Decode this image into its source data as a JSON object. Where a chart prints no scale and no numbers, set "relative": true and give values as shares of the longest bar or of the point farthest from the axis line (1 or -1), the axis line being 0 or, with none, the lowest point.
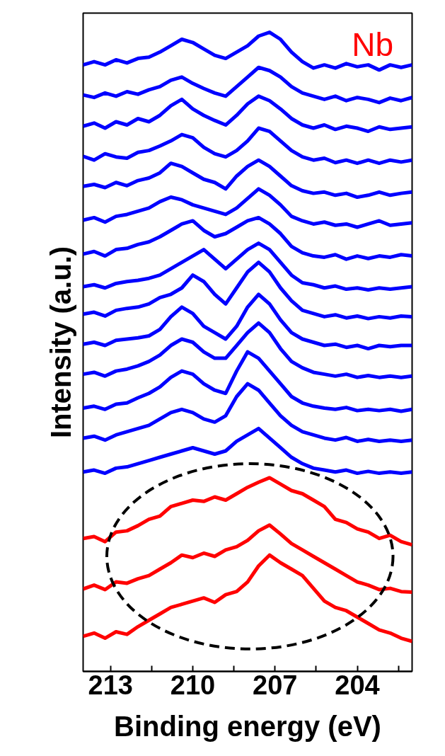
{
  "chart_data": {
    "type": "line",
    "relative": true,
    "xlabel": "Binding energy (eV)",
    "ylabel": "Intensity (a.u.)",
    "annotations": [
      "Nb"
    ],
    "xlim": [
      214.0,
      202.0
    ],
    "xticks": [
      213,
      {
        "value": 211.5,
        "label": null
      },
      210,
      {
        "value": 208.5,
        "label": null
      },
      207,
      {
        "value": 205.5,
        "label": null
      },
      204,
      {
        "value": 202.5,
        "label": null
      }
    ],
    "tick_labels": "x",
    "grid": false,
    "marker": "none",
    "line_style": "solid",
    "x": [
      214,
      213.6,
      213.2,
      212.8,
      212.4,
      212.0,
      211.6,
      211.2,
      210.8,
      210.4,
      210.0,
      209.6,
      209.2,
      208.8,
      208.4,
      208.0,
      207.6,
      207.2,
      206.8,
      206.4,
      206.0,
      205.6,
      205.2,
      204.8,
      204.4,
      204.0,
      203.6,
      203.2,
      202.8,
      202.4,
      202.0
    ],
    "series": [
      {
        "color": "#0000ff",
        "values": [
          0.949,
          0.954,
          0.949,
          0.957,
          0.952,
          0.959,
          0.961,
          0.969,
          0.979,
          0.989,
          0.984,
          0.974,
          0.964,
          0.959,
          0.969,
          0.979,
          0.994,
          1.0,
          0.989,
          0.969,
          0.954,
          0.944,
          0.949,
          0.944,
          0.951,
          0.946,
          0.949,
          0.941,
          0.949,
          0.945,
          0.949
        ]
      },
      {
        "color": "#0000ff",
        "values": [
          0.902,
          0.898,
          0.905,
          0.9,
          0.907,
          0.903,
          0.91,
          0.915,
          0.925,
          0.93,
          0.92,
          0.912,
          0.905,
          0.9,
          0.915,
          0.93,
          0.945,
          0.94,
          0.93,
          0.915,
          0.905,
          0.9,
          0.895,
          0.9,
          0.893,
          0.898,
          0.895,
          0.89,
          0.897,
          0.893,
          0.898
        ]
      },
      {
        "color": "#0000ff",
        "values": [
          0.853,
          0.858,
          0.85,
          0.86,
          0.855,
          0.865,
          0.86,
          0.87,
          0.885,
          0.895,
          0.88,
          0.87,
          0.862,
          0.855,
          0.87,
          0.888,
          0.9,
          0.893,
          0.88,
          0.865,
          0.855,
          0.85,
          0.855,
          0.848,
          0.853,
          0.85,
          0.845,
          0.852,
          0.848,
          0.85,
          0.852
        ]
      },
      {
        "color": "#0000ff",
        "values": [
          0.806,
          0.8,
          0.81,
          0.805,
          0.803,
          0.812,
          0.815,
          0.822,
          0.83,
          0.84,
          0.835,
          0.82,
          0.81,
          0.805,
          0.815,
          0.83,
          0.85,
          0.845,
          0.83,
          0.815,
          0.805,
          0.8,
          0.803,
          0.796,
          0.8,
          0.795,
          0.8,
          0.795,
          0.8,
          0.797,
          0.8
        ]
      },
      {
        "color": "#0000ff",
        "values": [
          0.759,
          0.762,
          0.757,
          0.765,
          0.76,
          0.768,
          0.772,
          0.78,
          0.795,
          0.79,
          0.78,
          0.77,
          0.765,
          0.755,
          0.775,
          0.79,
          0.8,
          0.79,
          0.775,
          0.76,
          0.752,
          0.748,
          0.75,
          0.745,
          0.748,
          0.742,
          0.745,
          0.75,
          0.745,
          0.748,
          0.75
        ]
      },
      {
        "color": "#0000ff",
        "values": [
          0.706,
          0.71,
          0.703,
          0.712,
          0.715,
          0.72,
          0.725,
          0.735,
          0.742,
          0.738,
          0.73,
          0.725,
          0.72,
          0.715,
          0.725,
          0.74,
          0.755,
          0.745,
          0.73,
          0.712,
          0.705,
          0.7,
          0.703,
          0.698,
          0.7,
          0.695,
          0.7,
          0.705,
          0.698,
          0.7,
          0.702
        ]
      },
      {
        "color": "#0000ff",
        "values": [
          0.653,
          0.657,
          0.65,
          0.66,
          0.662,
          0.668,
          0.672,
          0.68,
          0.69,
          0.7,
          0.705,
          0.69,
          0.68,
          0.685,
          0.695,
          0.705,
          0.71,
          0.7,
          0.685,
          0.665,
          0.655,
          0.65,
          0.648,
          0.652,
          0.645,
          0.65,
          0.646,
          0.65,
          0.648,
          0.652,
          0.65
        ]
      },
      {
        "color": "#0000ff",
        "values": [
          0.602,
          0.605,
          0.6,
          0.607,
          0.61,
          0.612,
          0.615,
          0.62,
          0.63,
          0.64,
          0.65,
          0.66,
          0.645,
          0.63,
          0.645,
          0.66,
          0.67,
          0.66,
          0.64,
          0.62,
          0.608,
          0.605,
          0.6,
          0.603,
          0.598,
          0.6,
          0.597,
          0.6,
          0.598,
          0.6,
          0.602
        ]
      },
      {
        "color": "#0000ff",
        "values": [
          0.559,
          0.562,
          0.556,
          0.565,
          0.568,
          0.57,
          0.575,
          0.585,
          0.59,
          0.6,
          0.62,
          0.61,
          0.59,
          0.575,
          0.6,
          0.625,
          0.64,
          0.625,
          0.6,
          0.58,
          0.565,
          0.56,
          0.555,
          0.558,
          0.553,
          0.556,
          0.552,
          0.555,
          0.553,
          0.556,
          0.555
        ]
      },
      {
        "color": "#0000ff",
        "values": [
          0.512,
          0.515,
          0.51,
          0.518,
          0.52,
          0.522,
          0.525,
          0.535,
          0.555,
          0.57,
          0.56,
          0.54,
          0.53,
          0.52,
          0.54,
          0.57,
          0.59,
          0.575,
          0.55,
          0.53,
          0.52,
          0.515,
          0.51,
          0.512,
          0.507,
          0.51,
          0.505,
          0.51,
          0.508,
          0.51,
          0.51
        ]
      },
      {
        "color": "#0000ff",
        "values": [
          0.465,
          0.468,
          0.462,
          0.47,
          0.473,
          0.478,
          0.485,
          0.495,
          0.51,
          0.52,
          0.515,
          0.5,
          0.49,
          0.49,
          0.51,
          0.53,
          0.545,
          0.53,
          0.505,
          0.485,
          0.475,
          0.468,
          0.465,
          0.462,
          0.465,
          0.46,
          0.463,
          0.46,
          0.462,
          0.46,
          0.462
        ]
      },
      {
        "color": "#0000ff",
        "values": [
          0.412,
          0.415,
          0.41,
          0.418,
          0.42,
          0.428,
          0.435,
          0.445,
          0.46,
          0.47,
          0.465,
          0.45,
          0.44,
          0.435,
          0.47,
          0.5,
          0.49,
          0.47,
          0.45,
          0.43,
          0.42,
          0.415,
          0.412,
          0.41,
          0.413,
          0.408,
          0.41,
          0.408,
          0.41,
          0.407,
          0.41
        ]
      },
      {
        "color": "#0000ff",
        "values": [
          0.365,
          0.368,
          0.362,
          0.37,
          0.375,
          0.38,
          0.385,
          0.395,
          0.405,
          0.41,
          0.405,
          0.395,
          0.39,
          0.4,
          0.43,
          0.45,
          0.44,
          0.42,
          0.4,
          0.385,
          0.375,
          0.37,
          0.365,
          0.362,
          0.366,
          0.36,
          0.363,
          0.36,
          0.362,
          0.36,
          0.362
        ]
      },
      {
        "color": "#0000ff",
        "values": [
          0.312,
          0.315,
          0.31,
          0.318,
          0.32,
          0.325,
          0.33,
          0.335,
          0.34,
          0.345,
          0.35,
          0.345,
          0.34,
          0.345,
          0.36,
          0.37,
          0.38,
          0.365,
          0.35,
          0.335,
          0.325,
          0.318,
          0.315,
          0.312,
          0.315,
          0.31,
          0.313,
          0.31,
          0.312,
          0.31,
          0.312
        ]
      },
      {
        "color": "#ff0000",
        "values": [
          0.208,
          0.211,
          0.203,
          0.218,
          0.22,
          0.228,
          0.238,
          0.243,
          0.258,
          0.263,
          0.268,
          0.266,
          0.273,
          0.268,
          0.278,
          0.288,
          0.296,
          0.303,
          0.293,
          0.283,
          0.278,
          0.268,
          0.258,
          0.238,
          0.233,
          0.223,
          0.218,
          0.208,
          0.213,
          0.203,
          0.198
        ]
      },
      {
        "color": "#ff0000",
        "values": [
          0.129,
          0.135,
          0.128,
          0.14,
          0.138,
          0.145,
          0.15,
          0.16,
          0.17,
          0.182,
          0.178,
          0.185,
          0.18,
          0.19,
          0.195,
          0.205,
          0.22,
          0.229,
          0.215,
          0.2,
          0.19,
          0.18,
          0.17,
          0.16,
          0.15,
          0.14,
          0.135,
          0.128,
          0.13,
          0.125,
          0.124
        ]
      },
      {
        "color": "#ff0000",
        "values": [
          0.055,
          0.06,
          0.052,
          0.062,
          0.058,
          0.07,
          0.08,
          0.09,
          0.1,
          0.105,
          0.11,
          0.115,
          0.108,
          0.12,
          0.125,
          0.14,
          0.165,
          0.182,
          0.17,
          0.16,
          0.15,
          0.13,
          0.11,
          0.1,
          0.095,
          0.085,
          0.075,
          0.065,
          0.06,
          0.052,
          0.047
        ]
      }
    ]
  }
}
